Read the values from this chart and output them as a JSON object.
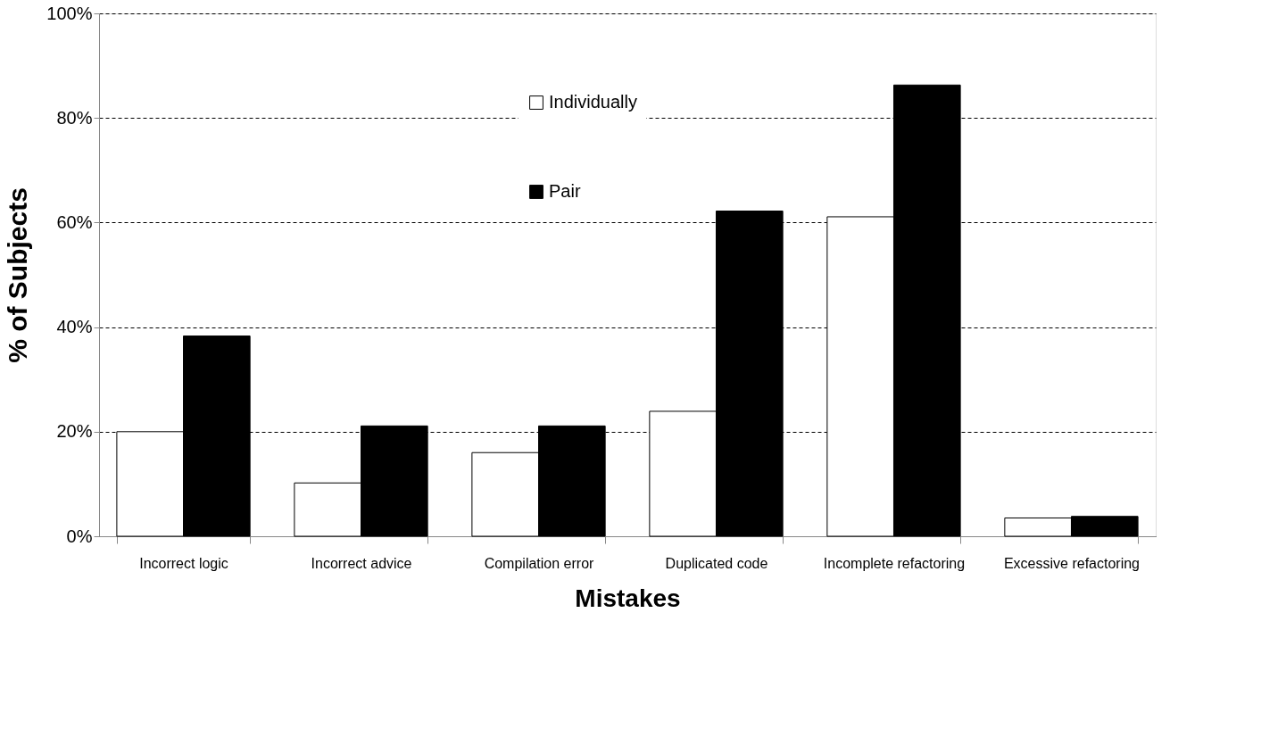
{
  "chart_data": {
    "type": "bar",
    "xlabel": "Mistakes",
    "ylabel": "% of Subjects",
    "categories": [
      "Incorrect logic",
      "Incorrect advice",
      "Compilation error",
      "Duplicated code",
      "Incomplete refactoring",
      "Excessive refactoring"
    ],
    "series": [
      {
        "name": "Individually",
        "color": "#ffffff",
        "values": [
          20.0,
          10.2,
          16.0,
          23.9,
          61.1,
          3.5
        ]
      },
      {
        "name": "Pair",
        "color": "#000000",
        "values": [
          38.3,
          21.1,
          21.1,
          62.2,
          86.3,
          3.8
        ]
      }
    ],
    "ylim": [
      0,
      100
    ],
    "yticks": [
      {
        "value": 0,
        "label": "0%"
      },
      {
        "value": 20,
        "label": "20%"
      },
      {
        "value": 40,
        "label": "40%"
      },
      {
        "value": 60,
        "label": "60%"
      },
      {
        "value": 80,
        "label": "80%"
      },
      {
        "value": 100,
        "label": "100%"
      }
    ],
    "grid": "y",
    "legend": "top"
  }
}
